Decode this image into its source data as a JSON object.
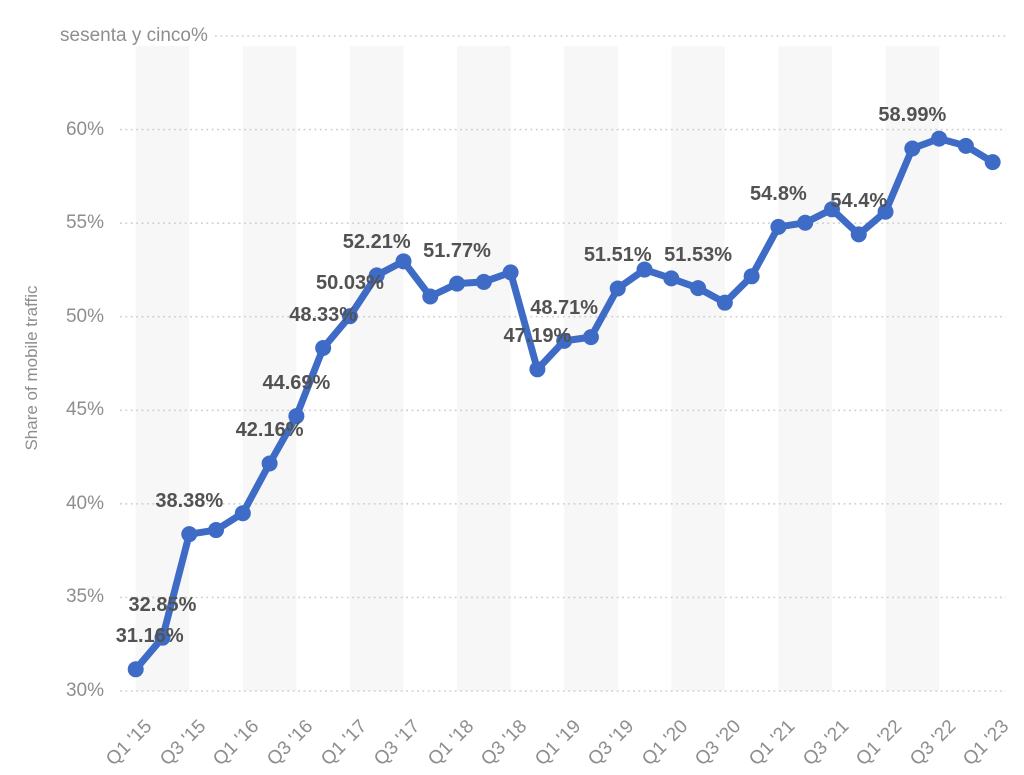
{
  "chart_data": {
    "type": "line",
    "title": "",
    "ylabel": "Share of mobile traffic",
    "xlabel": "",
    "ylim": [
      30,
      65
    ],
    "grid": "horizontal-dotted",
    "legend": false,
    "plot_bands": "alternating light-gray vertical bands from each Q1 tick to Q3 tick",
    "colors": {
      "line": "#3e6bc5",
      "marker": "#3e6bc5",
      "band": "#f7f7f7",
      "gridline": "#cfcfcf",
      "tick_text": "#8e8e8e",
      "value_label_text": "#525252",
      "background": "#ffffff"
    },
    "y_ticks": [
      {
        "label": "30%",
        "value": 30
      },
      {
        "label": "35%",
        "value": 35
      },
      {
        "label": "40%",
        "value": 40
      },
      {
        "label": "45%",
        "value": 45
      },
      {
        "label": "50%",
        "value": 50
      },
      {
        "label": "55%",
        "value": 55
      },
      {
        "label": "60%",
        "value": 60
      },
      {
        "label": "sesenta y cinco%",
        "value": 65
      }
    ],
    "x_tick_labels": [
      "Q1 '15",
      "Q3 '15",
      "Q1 '16",
      "Q3 '16",
      "Q1 '17",
      "Q3 '17",
      "Q1 '18",
      "Q3 '18",
      "Q1 '19",
      "Q3 '19",
      "Q1 '20",
      "Q3 '20",
      "Q1 '21",
      "Q3 '21",
      "Q1 '22",
      "Q3 '22",
      "Q1 '23"
    ],
    "categories": [
      "Q1 '15",
      "Q2 '15",
      "Q3 '15",
      "Q4 '15",
      "Q1 '16",
      "Q2 '16",
      "Q3 '16",
      "Q4 '16",
      "Q1 '17",
      "Q2 '17",
      "Q3 '17",
      "Q4 '17",
      "Q1 '18",
      "Q2 '18",
      "Q3 '18",
      "Q4 '18",
      "Q1 '19",
      "Q2 '19",
      "Q3 '19",
      "Q4 '19",
      "Q1 '20",
      "Q2 '20",
      "Q3 '20",
      "Q4 '20",
      "Q1 '21",
      "Q2 '21",
      "Q3 '21",
      "Q4 '21",
      "Q1 '22",
      "Q2 '22",
      "Q3 '22",
      "Q4 '22",
      "Q1 '23"
    ],
    "series": [
      {
        "name": "Share of mobile traffic",
        "values": [
          31.16,
          32.85,
          38.38,
          38.6,
          39.5,
          42.16,
          44.69,
          48.33,
          50.03,
          52.21,
          52.96,
          51.08,
          51.77,
          51.86,
          52.37,
          47.19,
          48.71,
          48.91,
          51.51,
          52.52,
          52.05,
          51.53,
          50.75,
          52.16,
          54.8,
          55.02,
          55.74,
          54.4,
          55.61,
          58.99,
          59.52,
          59.13,
          58.26
        ]
      }
    ],
    "data_labels": [
      {
        "index": 0,
        "text": "31.16%"
      },
      {
        "index": 1,
        "text": "32.85%"
      },
      {
        "index": 2,
        "text": "38.38%"
      },
      {
        "index": 5,
        "text": "42.16%"
      },
      {
        "index": 6,
        "text": "44.69%"
      },
      {
        "index": 7,
        "text": "48.33%"
      },
      {
        "index": 8,
        "text": "50.03%"
      },
      {
        "index": 9,
        "text": "52.21%"
      },
      {
        "index": 12,
        "text": "51.77%"
      },
      {
        "index": 15,
        "text": "47.19%"
      },
      {
        "index": 16,
        "text": "48.71%"
      },
      {
        "index": 18,
        "text": "51.51%"
      },
      {
        "index": 21,
        "text": "51.53%"
      },
      {
        "index": 24,
        "text": "54.8%"
      },
      {
        "index": 27,
        "text": "54.4%"
      },
      {
        "index": 29,
        "text": "58.99%"
      }
    ]
  }
}
